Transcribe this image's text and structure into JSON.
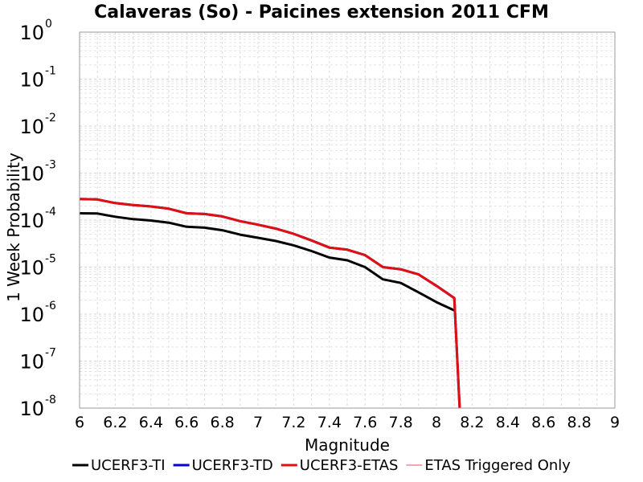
{
  "chart_data": {
    "type": "line",
    "title": "Calaveras (So) - Paicines extension 2011 CFM",
    "xlabel": "Magnitude",
    "ylabel": "1 Week Probability",
    "xlim": [
      6,
      9
    ],
    "ylim": [
      1e-08,
      1
    ],
    "y_scale": "log",
    "grid": true,
    "legend_position": "bottom",
    "x_ticks": [
      "6",
      "6.2",
      "6.4",
      "6.6",
      "6.8",
      "7",
      "7.2",
      "7.4",
      "7.6",
      "7.8",
      "8",
      "8.2",
      "8.4",
      "8.6",
      "8.8",
      "9"
    ],
    "y_ticks": [
      {
        "base": "10",
        "exp": "0"
      },
      {
        "base": "10",
        "exp": "-1"
      },
      {
        "base": "10",
        "exp": "-2"
      },
      {
        "base": "10",
        "exp": "-3"
      },
      {
        "base": "10",
        "exp": "-4"
      },
      {
        "base": "10",
        "exp": "-5"
      },
      {
        "base": "10",
        "exp": "-6"
      },
      {
        "base": "10",
        "exp": "-7"
      },
      {
        "base": "10",
        "exp": "-8"
      }
    ],
    "series": [
      {
        "name": "UCERF3-TI",
        "color": "#000000",
        "x": [
          6.0,
          6.1,
          6.2,
          6.3,
          6.4,
          6.5,
          6.6,
          6.7,
          6.8,
          6.9,
          7.0,
          7.1,
          7.2,
          7.3,
          7.4,
          7.5,
          7.6,
          7.7,
          7.8,
          7.9,
          8.0,
          8.1
        ],
        "y": [
          0.00014,
          0.000138,
          0.000118,
          0.000105,
          9.8e-05,
          8.8e-05,
          7.2e-05,
          6.9e-05,
          6.1e-05,
          4.9e-05,
          4.2e-05,
          3.6e-05,
          2.9e-05,
          2.2e-05,
          1.6e-05,
          1.4e-05,
          1e-05,
          5.5e-06,
          4.6e-06,
          2.9e-06,
          1.8e-06,
          1.2e-06
        ]
      },
      {
        "name": "UCERF3-TD",
        "color": "#0000dd",
        "x": [
          6.0,
          6.1,
          6.2,
          6.3,
          6.4,
          6.5,
          6.6,
          6.7,
          6.8,
          6.9,
          7.0,
          7.1,
          7.2,
          7.3,
          7.4,
          7.5,
          7.6,
          7.7,
          7.8,
          7.9,
          8.0,
          8.1,
          8.13
        ],
        "y": [
          0.00028,
          0.000275,
          0.00023,
          0.00021,
          0.000195,
          0.000175,
          0.00014,
          0.000135,
          0.00012,
          9.5e-05,
          8e-05,
          6.6e-05,
          5.1e-05,
          3.7e-05,
          2.6e-05,
          2.35e-05,
          1.8e-05,
          1e-05,
          9e-06,
          7e-06,
          4e-06,
          2.2e-06,
          1e-08
        ]
      },
      {
        "name": "UCERF3-ETAS",
        "color": "#e01010",
        "x": [
          6.0,
          6.1,
          6.2,
          6.3,
          6.4,
          6.5,
          6.6,
          6.7,
          6.8,
          6.9,
          7.0,
          7.1,
          7.2,
          7.3,
          7.4,
          7.5,
          7.6,
          7.7,
          7.8,
          7.9,
          8.0,
          8.1,
          8.13
        ],
        "y": [
          0.00028,
          0.000275,
          0.00023,
          0.00021,
          0.000195,
          0.000175,
          0.00014,
          0.000135,
          0.00012,
          9.5e-05,
          8e-05,
          6.6e-05,
          5.1e-05,
          3.7e-05,
          2.6e-05,
          2.35e-05,
          1.8e-05,
          1e-05,
          9e-06,
          7e-06,
          4e-06,
          2.2e-06,
          1e-08
        ]
      },
      {
        "name": "ETAS Triggered Only",
        "color": "#e05050",
        "x": [],
        "y": []
      }
    ]
  }
}
